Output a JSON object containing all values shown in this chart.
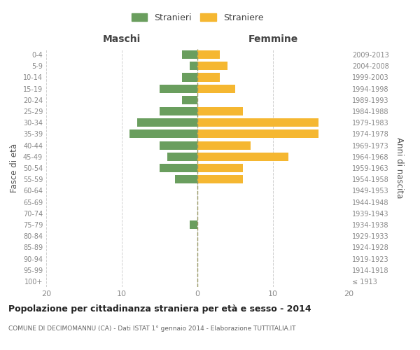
{
  "age_groups": [
    "100+",
    "95-99",
    "90-94",
    "85-89",
    "80-84",
    "75-79",
    "70-74",
    "65-69",
    "60-64",
    "55-59",
    "50-54",
    "45-49",
    "40-44",
    "35-39",
    "30-34",
    "25-29",
    "20-24",
    "15-19",
    "10-14",
    "5-9",
    "0-4"
  ],
  "birth_years": [
    "≤ 1913",
    "1914-1918",
    "1919-1923",
    "1924-1928",
    "1929-1933",
    "1934-1938",
    "1939-1943",
    "1944-1948",
    "1949-1953",
    "1954-1958",
    "1959-1963",
    "1964-1968",
    "1969-1973",
    "1974-1978",
    "1979-1983",
    "1984-1988",
    "1989-1993",
    "1994-1998",
    "1999-2003",
    "2004-2008",
    "2009-2013"
  ],
  "maschi": [
    0,
    0,
    0,
    0,
    0,
    1,
    0,
    0,
    0,
    3,
    5,
    4,
    5,
    9,
    8,
    5,
    2,
    5,
    2,
    1,
    2
  ],
  "femmine": [
    0,
    0,
    0,
    0,
    0,
    0,
    0,
    0,
    0,
    6,
    6,
    12,
    7,
    16,
    16,
    6,
    0,
    5,
    3,
    4,
    3
  ],
  "maschi_color": "#6a9e5e",
  "femmine_color": "#f5b731",
  "title": "Popolazione per cittadinanza straniera per età e sesso - 2014",
  "subtitle": "COMUNE DI DECIMOMANNU (CA) - Dati ISTAT 1° gennaio 2014 - Elaborazione TUTTITALIA.IT",
  "legend_stranieri": "Stranieri",
  "legend_straniere": "Straniere",
  "xlabel_left": "Maschi",
  "xlabel_right": "Femmine",
  "ylabel_left": "Fasce di età",
  "ylabel_right": "Anni di nascita",
  "xlim": 20,
  "background_color": "#ffffff",
  "grid_color": "#d0d0d0",
  "axis_label_color": "#555555",
  "tick_label_color": "#888888",
  "bar_height": 0.75
}
